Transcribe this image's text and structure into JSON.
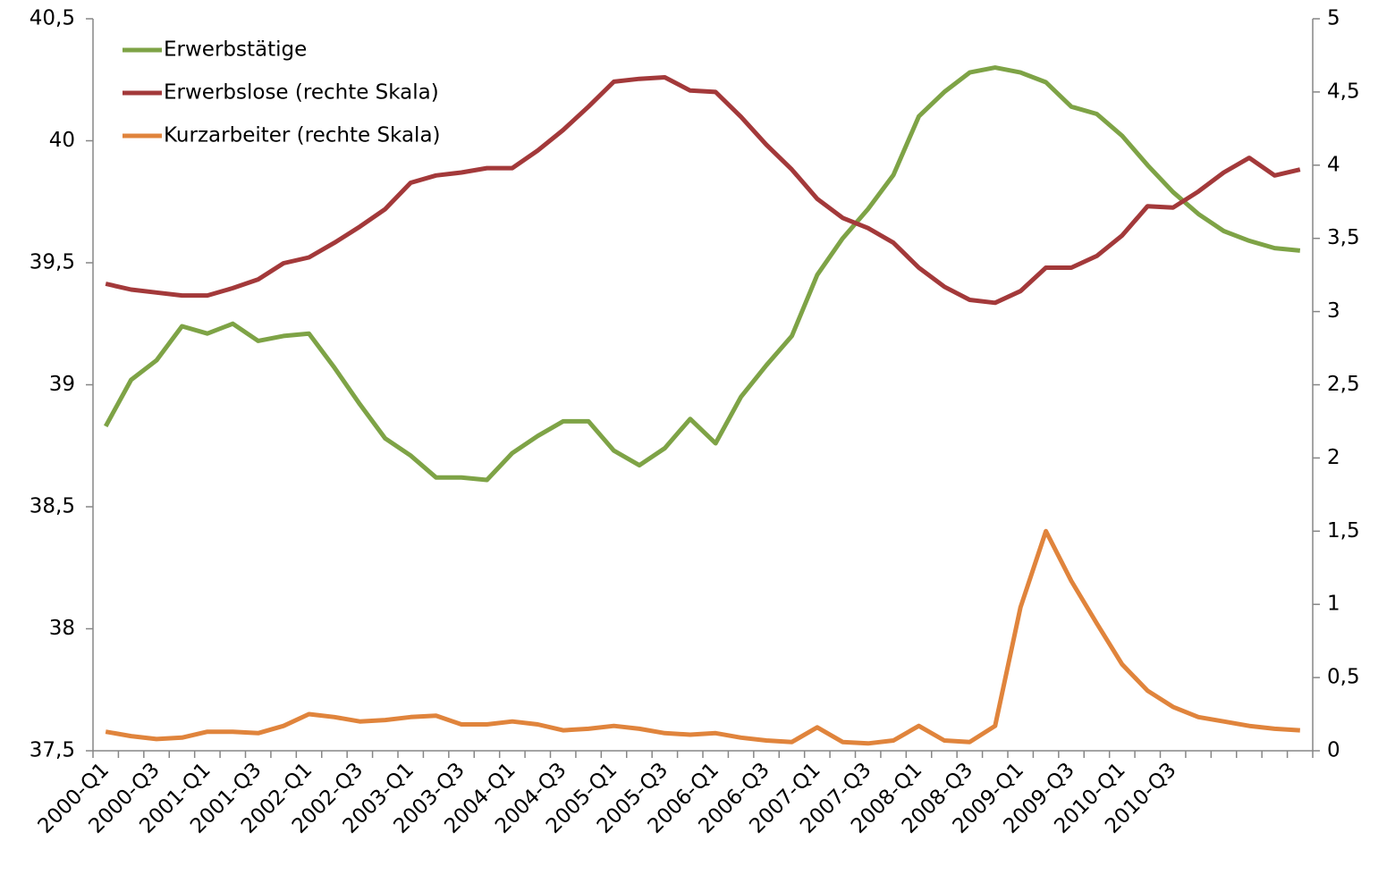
{
  "chart_data": {
    "type": "line",
    "categories": [
      "2000-Q1",
      null,
      "2000-Q3",
      null,
      "2001-Q1",
      null,
      "2001-Q3",
      null,
      "2002-Q1",
      null,
      "2002-Q3",
      null,
      "2003-Q1",
      null,
      "2003-Q3",
      null,
      "2004-Q1",
      null,
      "2004-Q3",
      null,
      "2005-Q1",
      null,
      "2005-Q3",
      null,
      "2006-Q1",
      null,
      "2006-Q3",
      null,
      "2007-Q1",
      null,
      "2007-Q3",
      null,
      "2008-Q1",
      null,
      "2008-Q3",
      null,
      "2009-Q1",
      null,
      "2009-Q3",
      null,
      "2010-Q1",
      null,
      "2010-Q3",
      null,
      null,
      null,
      null,
      null
    ],
    "series": [
      {
        "name": "Erwerbstätige",
        "color": "#7ea346",
        "axis": "y",
        "values": [
          38.83,
          39.02,
          39.1,
          39.24,
          39.21,
          39.25,
          39.18,
          39.2,
          39.21,
          39.07,
          38.92,
          38.78,
          38.71,
          38.62,
          38.62,
          38.61,
          38.72,
          38.79,
          38.85,
          38.85,
          38.73,
          38.67,
          38.74,
          38.86,
          38.76,
          38.95,
          39.08,
          39.2,
          39.45,
          39.6,
          39.72,
          39.86,
          40.1,
          40.2,
          40.28,
          40.3,
          40.28,
          40.24,
          40.14,
          40.11,
          40.02,
          39.9,
          39.79,
          39.7,
          39.63,
          39.59,
          39.56,
          39.55
        ]
      },
      {
        "name": "Erwerbslose (rechte Skala)",
        "color": "#a3393a",
        "axis": "y2",
        "values": [
          3.19,
          3.15,
          3.13,
          3.11,
          3.11,
          3.16,
          3.22,
          3.33,
          3.37,
          3.47,
          3.58,
          3.7,
          3.88,
          3.93,
          3.95,
          3.98,
          3.98,
          4.1,
          4.24,
          4.4,
          4.57,
          4.59,
          4.6,
          4.51,
          4.5,
          4.33,
          4.14,
          3.97,
          3.77,
          3.64,
          3.57,
          3.47,
          3.3,
          3.17,
          3.08,
          3.06,
          3.14,
          3.3,
          3.3,
          3.38,
          3.52,
          3.72,
          3.71,
          3.82,
          3.95,
          4.05,
          3.93,
          3.97
        ]
      },
      {
        "name": "Kurzarbeiter (rechte Skala)",
        "color": "#e0843c",
        "axis": "y2",
        "values": [
          0.13,
          0.1,
          0.08,
          0.09,
          0.13,
          0.13,
          0.12,
          0.17,
          0.25,
          0.23,
          0.2,
          0.21,
          0.23,
          0.24,
          0.18,
          0.18,
          0.2,
          0.18,
          0.14,
          0.15,
          0.17,
          0.15,
          0.12,
          0.11,
          0.12,
          0.09,
          0.07,
          0.06,
          0.16,
          0.06,
          0.05,
          0.07,
          0.17,
          0.07,
          0.06,
          0.17,
          0.98,
          1.5,
          1.16,
          0.87,
          0.59,
          0.41,
          0.3,
          0.23,
          0.2,
          0.17,
          0.15,
          0.14
        ]
      }
    ],
    "ylim": [
      37.5,
      40.5
    ],
    "yticks": [
      {
        "value": 37.5,
        "label": "37,5"
      },
      38,
      {
        "value": 38.5,
        "label": "38,5"
      },
      39,
      {
        "value": 39.5,
        "label": "39,5"
      },
      40,
      {
        "value": 40.5,
        "label": "40,5"
      }
    ],
    "y2lim": [
      0,
      5
    ],
    "y2ticks": [
      0,
      {
        "value": 0.5,
        "label": "0,5"
      },
      1,
      {
        "value": 1.5,
        "label": "1,5"
      },
      2,
      {
        "value": 2.5,
        "label": "2,5"
      },
      3,
      {
        "value": 3.5,
        "label": "3,5"
      },
      4,
      {
        "value": 4.5,
        "label": "4,5"
      },
      5
    ],
    "grid": false,
    "legend": "upper left"
  }
}
